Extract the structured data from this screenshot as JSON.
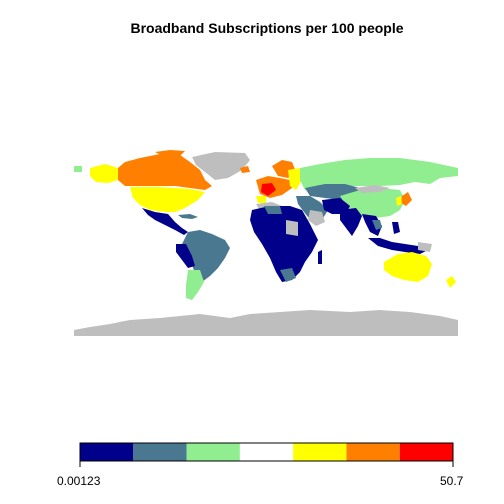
{
  "title": "Broadband Subscriptions per 100 people",
  "legend": {
    "min_label": "0.00123",
    "max_label": "50.7",
    "colors": [
      "#00008b",
      "#4a7890",
      "#90ee90",
      "#ffffff",
      "#ffff00",
      "#ff7f00",
      "#ff0000"
    ]
  },
  "map_colors": {
    "no_data": "#bebebe",
    "ocean": "#ffffff",
    "border": "#ffffff"
  }
}
